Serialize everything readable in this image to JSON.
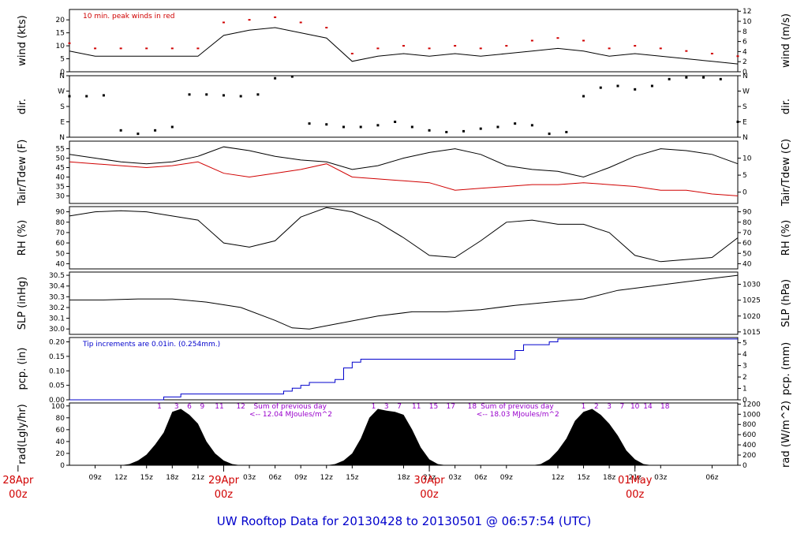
{
  "chart_data": {
    "type": "line",
    "title": "UW Rooftop Data for 20130428  to  20130501 @ 06:57:54  (UTC)",
    "time_axis": {
      "range_hours_since_start": [
        0,
        78
      ],
      "start_label_hour": 6,
      "hour_ticks": [
        "09z",
        "12z",
        "15z",
        "18z",
        "21z",
        "03z",
        "06z",
        "09z",
        "12z",
        "15z",
        "18z",
        "21z",
        "03z",
        "06z",
        "09z",
        "12z",
        "15z",
        "18z",
        "21z",
        "03z",
        "06z"
      ],
      "day_labels": [
        {
          "date": "28Apr",
          "hour": "00z"
        },
        {
          "date": "29Apr",
          "hour": "00z"
        },
        {
          "date": "30Apr",
          "hour": "00z"
        },
        {
          "date": "01May",
          "hour": "00z"
        }
      ]
    },
    "panels": [
      {
        "id": "wind",
        "ylabel_left": "wind (kts)",
        "ylabel_right": "wind (m/s)",
        "ylim_left": [
          0,
          24
        ],
        "ticks_left": [
          "0",
          "5",
          "10",
          "15",
          "20"
        ],
        "ylim_right": [
          0,
          12.35
        ],
        "ticks_right": [
          "0",
          "2",
          "4",
          "6",
          "8",
          "10",
          "12"
        ],
        "annotation": "10 min. peak winds in red",
        "series": [
          {
            "name": "wind",
            "color": "#000000",
            "x": [
              0,
              3,
              6,
              9,
              12,
              15,
              18,
              21,
              24,
              27,
              30,
              33,
              36,
              39,
              42,
              45,
              48,
              51,
              54,
              57,
              60,
              63,
              66,
              69,
              72,
              75,
              78
            ],
            "y": [
              8,
              6,
              6,
              6,
              6,
              6,
              14,
              16,
              17,
              15,
              13,
              4,
              6,
              7,
              6,
              7,
              6,
              7,
              8,
              9,
              8,
              6,
              7,
              6,
              5,
              4,
              3
            ]
          },
          {
            "name": "10 min. peak winds",
            "color": "#d00000",
            "x": [
              0,
              3,
              6,
              9,
              12,
              15,
              18,
              21,
              24,
              27,
              30,
              33,
              36,
              39,
              42,
              45,
              48,
              51,
              54,
              57,
              60,
              63,
              66,
              69,
              72,
              75,
              78
            ],
            "y": [
              11,
              9,
              9,
              9,
              9,
              9,
              19,
              20,
              21,
              19,
              17,
              7,
              9,
              10,
              9,
              10,
              9,
              10,
              12,
              13,
              12,
              9,
              10,
              9,
              8,
              7,
              6
            ]
          }
        ]
      },
      {
        "id": "dir",
        "ylabel_left": "dir.",
        "ylabel_right": "dir.",
        "ticks_left": [
          "N",
          "E",
          "S",
          "W",
          "N"
        ],
        "ticks_right": [
          "N",
          "E",
          "S",
          "W",
          "N"
        ],
        "ylim": [
          0,
          360
        ],
        "series": [
          {
            "name": "direction",
            "color": "#000000",
            "x": [
              0,
              2,
              4,
              6,
              8,
              10,
              12,
              14,
              16,
              18,
              20,
              22,
              24,
              26,
              28,
              30,
              32,
              34,
              36,
              38,
              40,
              42,
              44,
              46,
              48,
              50,
              52,
              54,
              56,
              58,
              60,
              62,
              64,
              66,
              68,
              70,
              72,
              74,
              76,
              78
            ],
            "y": [
              240,
              240,
              245,
              40,
              20,
              40,
              60,
              250,
              250,
              245,
              240,
              250,
              345,
              355,
              80,
              75,
              60,
              60,
              70,
              90,
              60,
              40,
              30,
              35,
              50,
              60,
              80,
              70,
              20,
              30,
              240,
              290,
              300,
              280,
              300,
              340,
              350,
              350,
              340,
              90
            ]
          }
        ]
      },
      {
        "id": "temp",
        "ylabel_left": "Tair/Tdew (F)",
        "ylabel_right": "Tair/Tdew (C)",
        "ylim_left": [
          26,
          59
        ],
        "ticks_left": [
          "30",
          "35",
          "40",
          "45",
          "50",
          "55"
        ],
        "ticks_right": [
          "0",
          "5",
          "10"
        ],
        "series": [
          {
            "name": "Tair",
            "color": "#000000",
            "x": [
              0,
              3,
              6,
              9,
              12,
              15,
              18,
              21,
              24,
              27,
              30,
              33,
              36,
              39,
              42,
              45,
              48,
              51,
              54,
              57,
              60,
              63,
              66,
              69,
              72,
              75,
              78
            ],
            "y": [
              52,
              50,
              48,
              47,
              48,
              51,
              56,
              54,
              51,
              49,
              48,
              44,
              46,
              50,
              53,
              55,
              52,
              46,
              44,
              43,
              40,
              45,
              51,
              55,
              54,
              52,
              47
            ]
          },
          {
            "name": "Tdew",
            "color": "#d00000",
            "x": [
              0,
              3,
              6,
              9,
              12,
              15,
              18,
              21,
              24,
              27,
              30,
              33,
              36,
              39,
              42,
              45,
              48,
              51,
              54,
              57,
              60,
              63,
              66,
              69,
              72,
              75,
              78
            ],
            "y": [
              48,
              47,
              46,
              45,
              46,
              48,
              42,
              40,
              42,
              44,
              47,
              40,
              39,
              38,
              37,
              33,
              34,
              35,
              36,
              36,
              37,
              36,
              35,
              33,
              33,
              31,
              30
            ]
          }
        ]
      },
      {
        "id": "rh",
        "ylabel_left": "RH (%)",
        "ylabel_right": "RH (%)",
        "ylim": [
          35,
          95
        ],
        "ticks_left": [
          "40",
          "50",
          "60",
          "70",
          "80",
          "90"
        ],
        "ticks_right": [
          "40",
          "50",
          "60",
          "70",
          "80",
          "90"
        ],
        "series": [
          {
            "name": "RH",
            "color": "#000000",
            "x": [
              0,
              3,
              6,
              9,
              12,
              15,
              18,
              21,
              24,
              27,
              30,
              33,
              36,
              39,
              42,
              45,
              48,
              51,
              54,
              57,
              60,
              63,
              66,
              69,
              72,
              75,
              78
            ],
            "y": [
              86,
              90,
              91,
              90,
              86,
              82,
              60,
              56,
              62,
              85,
              94,
              90,
              80,
              65,
              48,
              46,
              62,
              80,
              82,
              78,
              78,
              70,
              48,
              42,
              44,
              46,
              65
            ]
          }
        ]
      },
      {
        "id": "slp",
        "ylabel_left": "SLP (inHg)",
        "ylabel_right": "SLP (hPa)",
        "ylim_left": [
          29.95,
          30.53
        ],
        "ticks_left": [
          "30.0",
          "30.1",
          "30.2",
          "30.3",
          "30.4",
          "30.5"
        ],
        "ticks_right": [
          "1015",
          "1020",
          "1025",
          "1030"
        ],
        "series": [
          {
            "name": "SLP",
            "color": "#000000",
            "x": [
              0,
              4,
              8,
              12,
              16,
              20,
              24,
              26,
              28,
              32,
              36,
              40,
              44,
              48,
              52,
              56,
              60,
              64,
              68,
              72,
              76,
              78
            ],
            "y": [
              30.27,
              30.27,
              30.28,
              30.28,
              30.25,
              30.2,
              30.08,
              30.01,
              30.0,
              30.06,
              30.12,
              30.16,
              30.16,
              30.18,
              30.22,
              30.25,
              30.28,
              30.36,
              30.4,
              30.44,
              30.48,
              30.5
            ]
          }
        ]
      },
      {
        "id": "pcp",
        "ylabel_left": "pcp. (in)",
        "ylabel_right": "pcp. (mm)",
        "ylim_left": [
          0,
          0.215
        ],
        "ticks_left": [
          "0.00",
          "0.05",
          "0.10",
          "0.15",
          "0.20"
        ],
        "ticks_right": [
          "0",
          "1",
          "2",
          "3",
          "4",
          "5"
        ],
        "annotation": "Tip increments are 0.01in. (0.254mm.)",
        "series": [
          {
            "name": "pcp",
            "color": "#0000cc",
            "x": [
              0,
              11,
              13,
              25,
              26,
              27,
              28,
              31,
              32,
              33,
              34,
              52,
              53,
              56,
              57,
              78
            ],
            "y": [
              0,
              0.01,
              0.02,
              0.03,
              0.04,
              0.05,
              0.06,
              0.07,
              0.11,
              0.13,
              0.14,
              0.17,
              0.19,
              0.2,
              0.21,
              0.21
            ]
          }
        ]
      },
      {
        "id": "rad",
        "ylabel_left": "rad(Lgly/hr)",
        "ylabel_right": "rad (W/m^2)",
        "ylim_left": [
          0,
          105
        ],
        "ticks_left": [
          "0",
          "20",
          "40",
          "60",
          "80",
          "100"
        ],
        "ticks_right": [
          "0",
          "200",
          "400",
          "600",
          "800",
          "1000",
          "1200"
        ],
        "day_sums": [
          "Sum of previous day",
          "<-- 12.04 MJoules/m^2",
          "Sum of previous day",
          "<-- 18.03 MJoules/m^2"
        ],
        "hour_labels": [
          {
            "x": 10.5,
            "text": "1"
          },
          {
            "x": 12.5,
            "text": "3"
          },
          {
            "x": 14,
            "text": "6"
          },
          {
            "x": 15.5,
            "text": "9"
          },
          {
            "x": 17.5,
            "text": "11"
          },
          {
            "x": 20,
            "text": "12"
          },
          {
            "x": 35.5,
            "text": "1"
          },
          {
            "x": 37,
            "text": "3"
          },
          {
            "x": 38.5,
            "text": "7"
          },
          {
            "x": 40.5,
            "text": "11"
          },
          {
            "x": 42.5,
            "text": "15"
          },
          {
            "x": 44.5,
            "text": "17"
          },
          {
            "x": 47,
            "text": "18"
          },
          {
            "x": 60,
            "text": "1"
          },
          {
            "x": 61.5,
            "text": "2"
          },
          {
            "x": 63,
            "text": "3"
          },
          {
            "x": 64.5,
            "text": "7"
          },
          {
            "x": 66,
            "text": "10"
          },
          {
            "x": 67.5,
            "text": "14"
          },
          {
            "x": 69.5,
            "text": "18"
          }
        ],
        "series": [
          {
            "name": "radiation",
            "color": "#000000",
            "x": [
              6,
              7,
              8,
              9,
              10,
              11,
              12,
              13,
              14,
              15,
              16,
              17,
              18,
              19,
              20,
              30,
              31,
              32,
              33,
              34,
              35,
              36,
              37,
              38,
              39,
              40,
              41,
              42,
              43,
              44,
              54,
              55,
              56,
              57,
              58,
              59,
              60,
              61,
              62,
              63,
              64,
              65,
              66,
              67,
              68
            ],
            "y": [
              0,
              2,
              8,
              18,
              35,
              55,
              90,
              95,
              85,
              70,
              40,
              20,
              8,
              2,
              0,
              0,
              2,
              8,
              20,
              45,
              80,
              95,
              92,
              90,
              85,
              60,
              30,
              10,
              2,
              0,
              0,
              2,
              10,
              25,
              45,
              75,
              90,
              95,
              85,
              70,
              50,
              25,
              10,
              2,
              0
            ]
          }
        ]
      }
    ]
  }
}
